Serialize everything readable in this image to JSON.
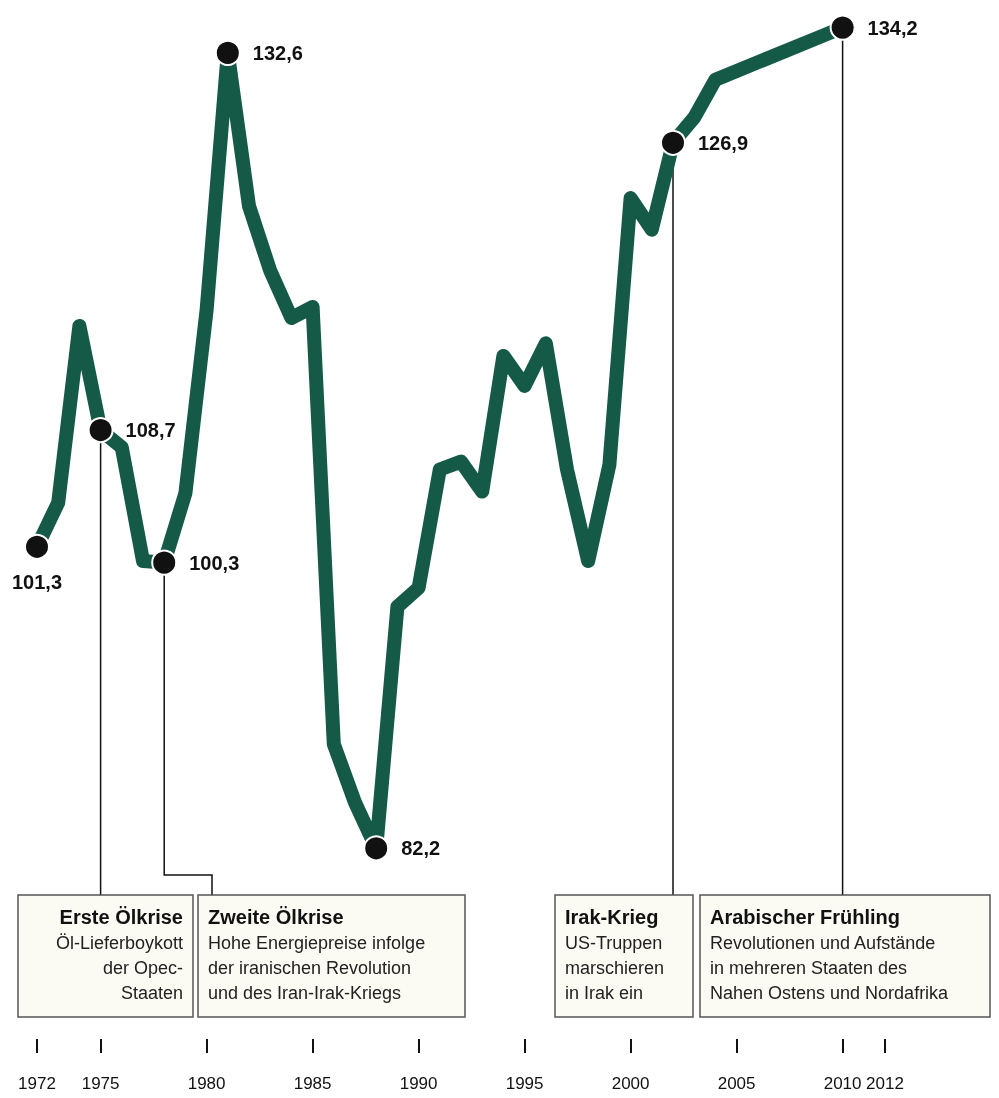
{
  "chart_data": {
    "type": "line",
    "x": [
      1972,
      1973,
      1974,
      1975,
      1976,
      1977,
      1978,
      1979,
      1980,
      1981,
      1982,
      1983,
      1984,
      1985,
      1986,
      1987,
      1988,
      1989,
      1990,
      1991,
      1992,
      1993,
      1994,
      1995,
      1996,
      1997,
      1998,
      1999,
      2000,
      2001,
      2002,
      2003,
      2004,
      2005,
      2006,
      2007,
      2008,
      2009,
      2010
    ],
    "series": [
      {
        "color": "#155a47",
        "values": [
          101.3,
          104.1,
          115.3,
          108.7,
          107.6,
          100.4,
          100.3,
          104.7,
          116.3,
          132.6,
          122.9,
          118.8,
          115.8,
          116.5,
          88.8,
          85.1,
          82.2,
          97.5,
          98.7,
          106.2,
          106.7,
          104.8,
          113.4,
          111.5,
          114.2,
          106.2,
          100.4,
          106.5,
          123.4,
          121.4,
          126.9,
          128.5,
          130.9,
          null,
          null,
          null,
          null,
          null,
          134.2
        ],
        "value_labels": [
          "101,3",
          null,
          null,
          "108,7",
          null,
          null,
          "100,3",
          null,
          null,
          "132,6",
          null,
          null,
          null,
          null,
          null,
          null,
          "82,2",
          null,
          null,
          null,
          null,
          null,
          null,
          null,
          null,
          null,
          null,
          null,
          null,
          null,
          "126,9",
          null,
          null,
          null,
          null,
          null,
          null,
          null,
          "134,2"
        ]
      }
    ],
    "xlim": [
      1972,
      2012
    ],
    "xticks": [
      1972,
      1975,
      1980,
      1985,
      1990,
      1995,
      2000,
      2005,
      2010,
      2012
    ],
    "tick_labels": "x",
    "line_style": "solid",
    "annotations": [
      "Erste Ölkrise\nÖl-Lieferboykott\nder Opec-\nStaaten",
      "Zweite Ölkrise\nHohe Energiepreise infolge\nder iranischen Revolution\nund des Iran-Irak-Kriegs",
      "Irak-Krieg\nUS-Truppen\nmarschieren\nin Irak ein",
      "Arabischer Frühling\nRevolutionen und Aufstände\nin mehreren Staaten des\nNahen Ostens und Nordafrika"
    ]
  }
}
